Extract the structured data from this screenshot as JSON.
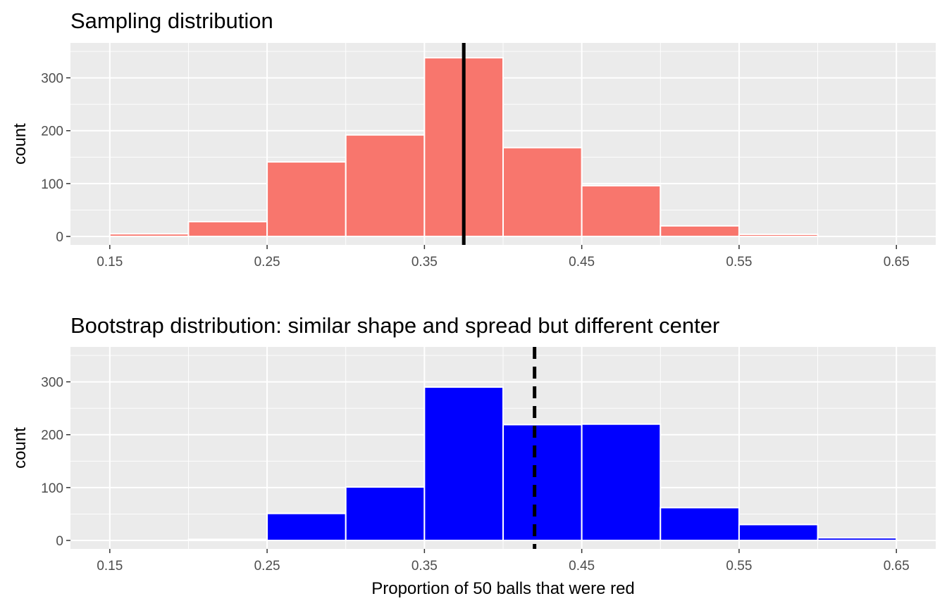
{
  "chart_data": [
    {
      "type": "bar",
      "title": "Sampling distribution",
      "ylabel": "count",
      "xlabel": "",
      "fill": "#F8766D",
      "bin_edges": [
        0.15,
        0.2,
        0.25,
        0.3,
        0.35,
        0.4,
        0.45,
        0.5,
        0.55,
        0.6,
        0.65
      ],
      "values": [
        5,
        28,
        141,
        192,
        338,
        168,
        96,
        20,
        4,
        0
      ],
      "xlim": [
        0.125,
        0.675
      ],
      "ylim": [
        -16,
        366
      ],
      "x_ticks": [
        0.15,
        0.25,
        0.35,
        0.45,
        0.55,
        0.65
      ],
      "x_tick_labels": [
        "0.15",
        "0.25",
        "0.35",
        "0.45",
        "0.55",
        "0.65"
      ],
      "y_ticks": [
        0,
        100,
        200,
        300
      ],
      "y_tick_labels": [
        "0",
        "100",
        "200",
        "300"
      ],
      "vline": {
        "x": 0.375,
        "style": "solid",
        "color": "#000000"
      },
      "grid": true
    },
    {
      "type": "bar",
      "title": "Bootstrap distribution: similar shape and spread but different center",
      "ylabel": "count",
      "xlabel": "Proportion of 50 balls that were red",
      "fill": "#0000FF",
      "bin_edges": [
        0.15,
        0.2,
        0.25,
        0.3,
        0.35,
        0.4,
        0.45,
        0.5,
        0.55,
        0.6,
        0.65
      ],
      "values": [
        0,
        2,
        51,
        101,
        290,
        219,
        220,
        62,
        30,
        5
      ],
      "xlim": [
        0.125,
        0.675
      ],
      "ylim": [
        -16,
        366
      ],
      "x_ticks": [
        0.15,
        0.25,
        0.35,
        0.45,
        0.55,
        0.65
      ],
      "x_tick_labels": [
        "0.15",
        "0.25",
        "0.35",
        "0.45",
        "0.55",
        "0.65"
      ],
      "y_ticks": [
        0,
        100,
        200,
        300
      ],
      "y_tick_labels": [
        "0",
        "100",
        "200",
        "300"
      ],
      "vline": {
        "x": 0.42,
        "style": "dashed",
        "color": "#000000"
      },
      "grid": true
    }
  ]
}
